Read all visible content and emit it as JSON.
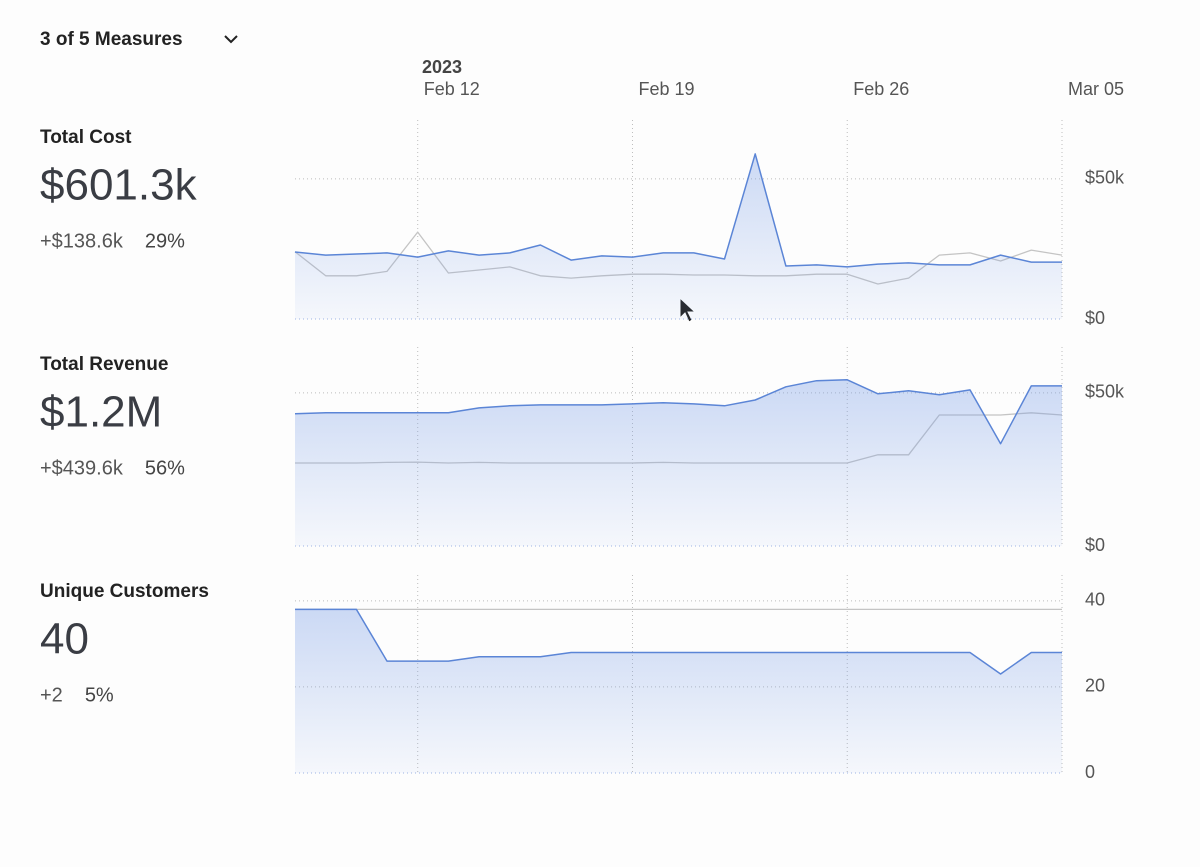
{
  "measure_selector": "3 of 5 Measures",
  "time_axis": {
    "year": "2023",
    "x": [
      "2023-02-08",
      "2023-02-09",
      "2023-02-10",
      "2023-02-11",
      "2023-02-12",
      "2023-02-13",
      "2023-02-14",
      "2023-02-15",
      "2023-02-16",
      "2023-02-17",
      "2023-02-18",
      "2023-02-19",
      "2023-02-20",
      "2023-02-21",
      "2023-02-22",
      "2023-02-23",
      "2023-02-24",
      "2023-02-25",
      "2023-02-26",
      "2023-02-27",
      "2023-02-28",
      "2023-03-01",
      "2023-03-02",
      "2023-03-03",
      "2023-03-04",
      "2023-03-05"
    ],
    "xlim": [
      "2023-02-08",
      "2023-03-05"
    ],
    "xticks": [
      {
        "value": "2023-02-12",
        "label": "Feb 12"
      },
      {
        "value": "2023-02-19",
        "label": "Feb 19"
      },
      {
        "value": "2023-02-26",
        "label": "Feb 26"
      },
      {
        "value": "2023-03-05",
        "label": "Mar 05"
      }
    ]
  },
  "chart_data": [
    {
      "type": "line",
      "title": "Total Cost",
      "total": "$601.3k",
      "change": "+$138.6k",
      "change_percent": "29%",
      "ylim": [
        0,
        71000
      ],
      "yticks": [
        {
          "value": 0,
          "label": "$0"
        },
        {
          "value": 50000,
          "label": "$50k"
        }
      ],
      "grid": true,
      "series": [
        {
          "color": "#5b85d6",
          "values": [
            23900,
            22800,
            23200,
            23600,
            22100,
            24300,
            22800,
            23600,
            26400,
            21000,
            22500,
            22100,
            23600,
            23600,
            21400,
            58900,
            18900,
            19300,
            18600,
            19600,
            20000,
            19300,
            19300,
            22800,
            20300,
            20300
          ]
        },
        {
          "color": "#c4c4c4",
          "values": [
            24000,
            15400,
            15400,
            17000,
            31000,
            16400,
            17500,
            18600,
            15400,
            14600,
            15400,
            16000,
            16000,
            15700,
            15700,
            15400,
            15400,
            16000,
            16000,
            12500,
            14600,
            22800,
            23600,
            20700,
            24600,
            22800
          ]
        }
      ]
    },
    {
      "type": "line",
      "title": "Total Revenue",
      "total": "$1.2M",
      "change": "+$439.6k",
      "change_percent": "56%",
      "ylim": [
        0,
        65000
      ],
      "yticks": [
        {
          "value": 0,
          "label": "$0"
        },
        {
          "value": 50000,
          "label": "$50k"
        }
      ],
      "grid": true,
      "series": [
        {
          "color": "#5b85d6",
          "values": [
            43200,
            43500,
            43500,
            43500,
            43500,
            43500,
            45100,
            45800,
            46100,
            46100,
            46100,
            46400,
            46800,
            46400,
            45800,
            47700,
            52000,
            54000,
            54300,
            49700,
            50700,
            49400,
            51000,
            33400,
            52300,
            52300
          ]
        },
        {
          "color": "#c4c4c4",
          "values": [
            27100,
            27100,
            27100,
            27300,
            27400,
            27100,
            27300,
            27100,
            27100,
            27100,
            27100,
            27100,
            27300,
            27100,
            27100,
            27100,
            27100,
            27100,
            27100,
            29800,
            29800,
            42800,
            42800,
            42800,
            43500,
            42800
          ]
        }
      ]
    },
    {
      "type": "line",
      "title": "Unique Customers",
      "total": "40",
      "change": "+2",
      "change_percent": "5%",
      "ylim": [
        0,
        46
      ],
      "yticks": [
        0,
        20,
        40
      ],
      "grid": true,
      "series": [
        {
          "color": "#5b85d6",
          "values": [
            38,
            38,
            38,
            26,
            26,
            26,
            27,
            27,
            27,
            28,
            28,
            28,
            28,
            28,
            28,
            28,
            28,
            28,
            28,
            28,
            28,
            28,
            28,
            23,
            28,
            28
          ]
        },
        {
          "color": "#c4c4c4",
          "values": [
            38,
            38,
            38,
            38,
            38,
            38,
            38,
            38,
            38,
            38,
            38,
            38,
            38,
            38,
            38,
            38,
            38,
            38,
            38,
            38,
            38,
            38,
            38,
            38,
            38,
            38
          ]
        }
      ]
    }
  ]
}
